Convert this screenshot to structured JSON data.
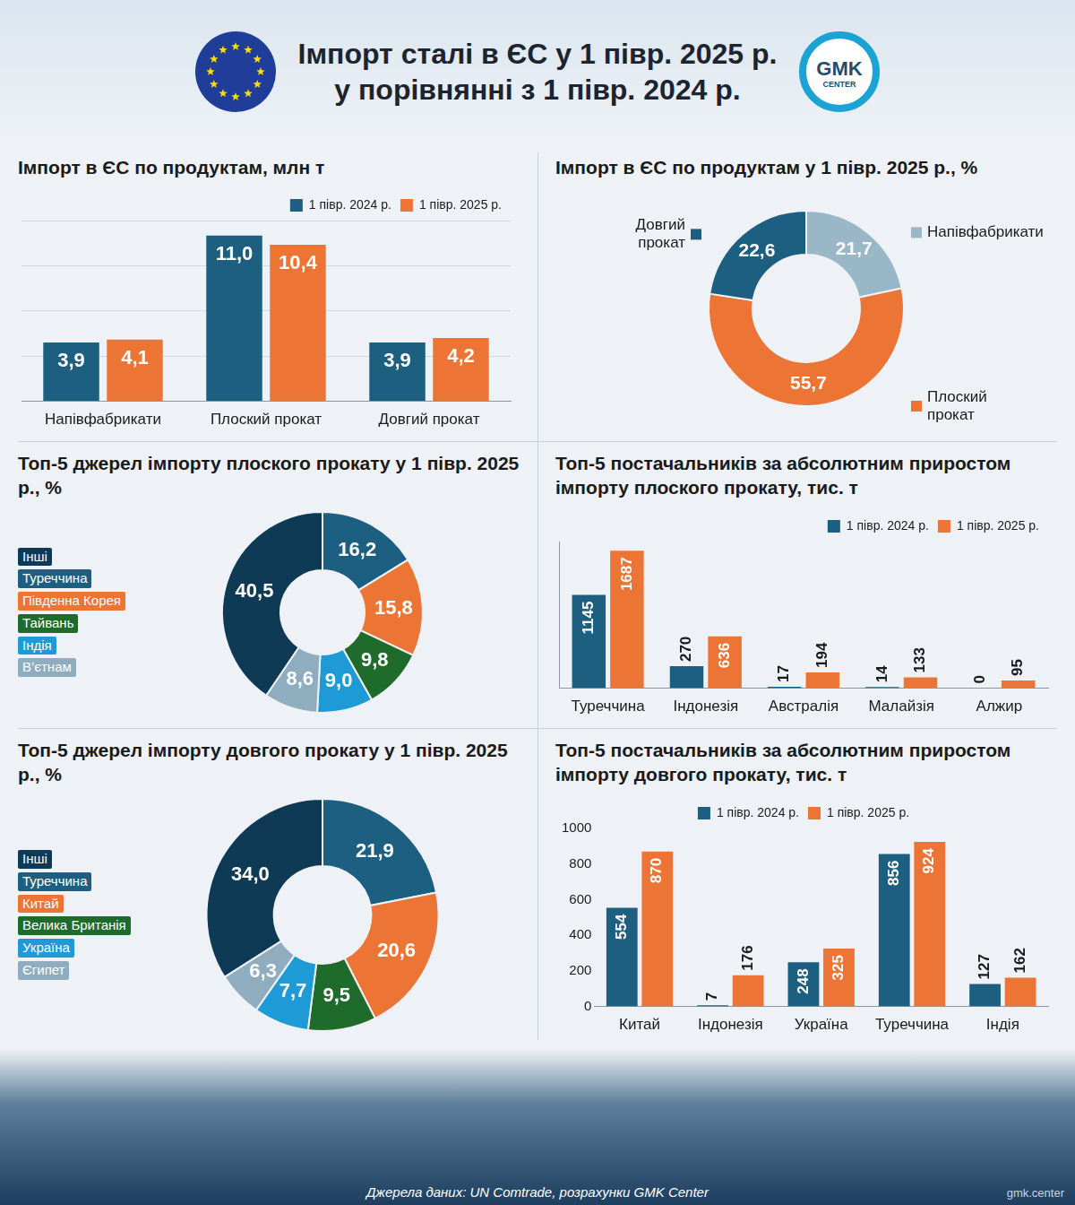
{
  "header": {
    "title": [
      "Імпорт сталі в ЄС у 1 півр. 2025 р.",
      "у порівнянні з 1 півр. 2024 р."
    ],
    "logo": [
      "GMK",
      "CENTER"
    ],
    "watermark": "gmk.center"
  },
  "chart_data": [
    {
      "type": "bar",
      "title": "Імпорт в ЄС по продуктам, млн т",
      "categories": [
        "Напівфабрикати",
        "Плоский прокат",
        "Довгий прокат"
      ],
      "series": [
        {
          "name": "1 півр. 2024 р.",
          "color": "#1d5f80",
          "values": [
            3.9,
            11.0,
            3.9
          ],
          "value_labels": [
            "3,9",
            "11,0",
            "3,9"
          ]
        },
        {
          "name": "1 півр. 2025 р.",
          "color": "#ec7434",
          "values": [
            4.1,
            10.4,
            4.2
          ],
          "value_labels": [
            "4,1",
            "10,4",
            "4,2"
          ]
        }
      ],
      "ylim": [
        0,
        12
      ],
      "yticks": [
        0,
        3,
        6,
        9,
        12
      ],
      "grid": true,
      "tick_labels": "x",
      "data_labels": true,
      "legend": "upper right"
    },
    {
      "type": "doughnut",
      "title": "Імпорт в ЄС по продуктам у 1 півр. 2025 р., %",
      "categories": [
        "Напівфабрикати",
        "Плоский прокат",
        "Довгий прокат"
      ],
      "values": [
        21.7,
        55.7,
        22.6
      ],
      "value_labels": [
        "21,7",
        "55,7",
        "22,6"
      ],
      "colors": [
        "#9ab7c8",
        "#ec7434",
        "#1d5f80"
      ],
      "data_labels": true
    },
    {
      "type": "doughnut",
      "title": "Топ-5 джерел імпорту плоского прокату у 1 півр. 2025 р., %",
      "categories": [
        "Інші",
        "Туреччина",
        "Південна Корея",
        "Тайвань",
        "Індія",
        "В’єтнам"
      ],
      "values": [
        40.5,
        16.2,
        15.8,
        9.8,
        9.0,
        8.6
      ],
      "value_labels": [
        "40,5",
        "16,2",
        "15,8",
        "9,8",
        "9,0",
        "8,6"
      ],
      "colors": [
        "#0e3a56",
        "#1d5f80",
        "#ec7434",
        "#1e6b2b",
        "#1e9ad6",
        "#8fadbf"
      ],
      "data_labels": true,
      "legend": "left"
    },
    {
      "type": "bar",
      "title": "Топ-5 постачальників за абсолютним приростом імпорту плоского прокату, тис. т",
      "categories": [
        "Туреччина",
        "Індонезія",
        "Австралія",
        "Малайзія",
        "Алжир"
      ],
      "series": [
        {
          "name": "1 півр. 2024 р.",
          "color": "#1d5f80",
          "values": [
            1145,
            270,
            17,
            14,
            0
          ]
        },
        {
          "name": "1 півр. 2025 р.",
          "color": "#ec7434",
          "values": [
            1687,
            636,
            194,
            133,
            95
          ]
        }
      ],
      "ylim": [
        0,
        1800
      ],
      "grid": false,
      "tick_labels": "x",
      "data_labels": true,
      "legend": "upper right"
    },
    {
      "type": "doughnut",
      "title": "Топ-5 джерел імпорту довгого прокату у 1 півр. 2025 р., %",
      "categories": [
        "Інші",
        "Туреччина",
        "Китай",
        "Велика Британія",
        "Україна",
        "Єгипет"
      ],
      "values": [
        34.0,
        21.9,
        20.6,
        9.5,
        7.7,
        6.3
      ],
      "value_labels": [
        "34,0",
        "21,9",
        "20,6",
        "9,5",
        "7,7",
        "6,3"
      ],
      "colors": [
        "#0e3a56",
        "#1d5f80",
        "#ec7434",
        "#1e6b2b",
        "#1e9ad6",
        "#8fadbf"
      ],
      "data_labels": true,
      "legend": "left"
    },
    {
      "type": "bar",
      "title": "Топ-5 постачальників за абсолютним приростом імпорту довгого прокату, тис. т",
      "categories": [
        "Китай",
        "Індонезія",
        "Україна",
        "Туреччина",
        "Індія"
      ],
      "series": [
        {
          "name": "1 півр. 2024 р.",
          "color": "#1d5f80",
          "values": [
            554,
            7,
            248,
            856,
            127
          ]
        },
        {
          "name": "1 півр. 2025 р.",
          "color": "#ec7434",
          "values": [
            870,
            176,
            325,
            924,
            162
          ]
        }
      ],
      "ylim": [
        0,
        1000
      ],
      "yticks": [
        0,
        200,
        400,
        600,
        800,
        1000
      ],
      "grid": false,
      "data_labels": true,
      "legend": "upper center"
    }
  ],
  "footer": "Джерела даних: UN Comtrade, розрахунки GMK Center"
}
